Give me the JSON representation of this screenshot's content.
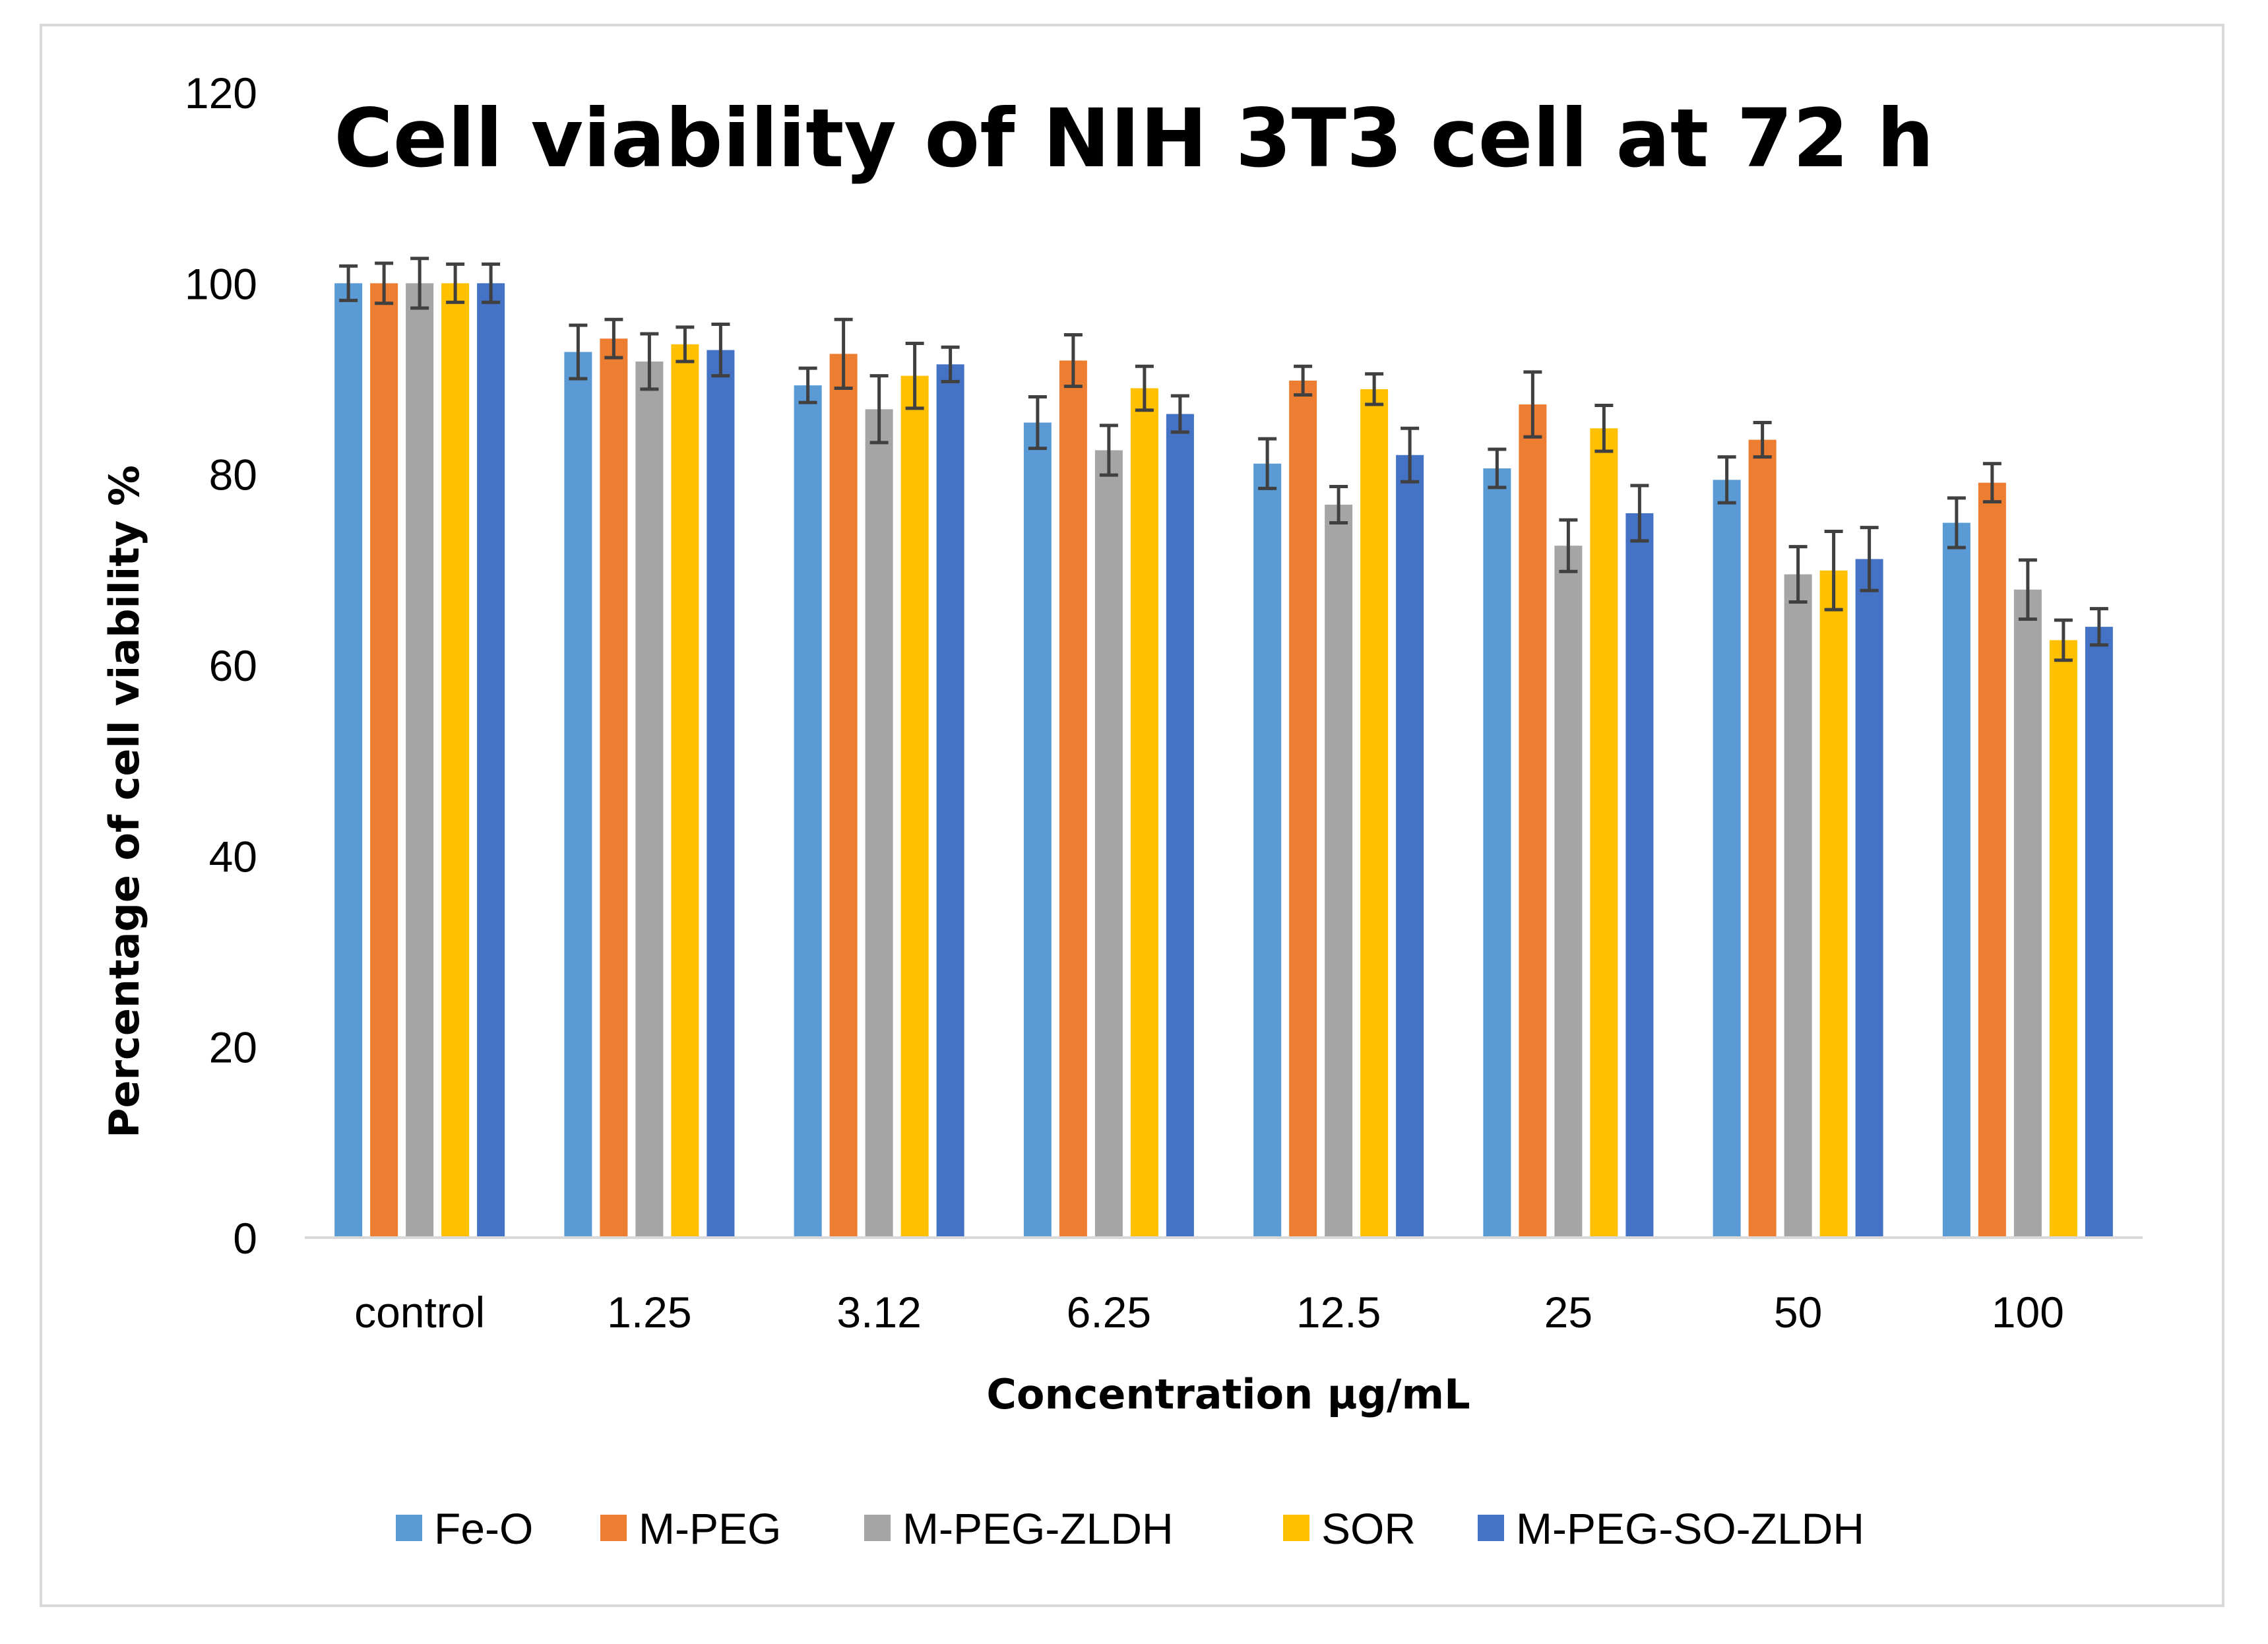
{
  "chart_data": {
    "type": "bar",
    "title": "Cell viability of NIH 3T3 cell at 72 h",
    "xlabel": "Concentration µg/mL",
    "ylabel": "Percentage of cell viability %",
    "ylim": [
      0,
      120
    ],
    "yticks": [
      0,
      20,
      40,
      60,
      80,
      100,
      120
    ],
    "categories": [
      "control",
      "1.25",
      "3.12",
      "6.25",
      "12.5",
      "25",
      "50",
      "100"
    ],
    "grid": false,
    "legend_position": "bottom",
    "series": [
      {
        "name": "Fe-O",
        "color": "#5B9BD5",
        "values": [
          100,
          92.8,
          89.3,
          85.4,
          81.1,
          80.6,
          79.4,
          74.9
        ],
        "errors": [
          1.8,
          2.8,
          1.8,
          2.7,
          2.6,
          2.0,
          2.4,
          2.6
        ]
      },
      {
        "name": "M-PEG",
        "color": "#ED7D31",
        "values": [
          100,
          94.2,
          92.6,
          91.9,
          89.8,
          87.3,
          83.6,
          79.1
        ],
        "errors": [
          2.1,
          2.0,
          3.6,
          2.7,
          1.5,
          3.4,
          1.8,
          2.0
        ]
      },
      {
        "name": "M-PEG-ZLDH",
        "color": "#A5A5A5",
        "values": [
          100,
          91.8,
          86.8,
          82.5,
          76.8,
          72.5,
          69.5,
          67.9
        ],
        "errors": [
          2.6,
          2.9,
          3.5,
          2.6,
          1.9,
          2.7,
          2.9,
          3.1
        ]
      },
      {
        "name": "SOR",
        "color": "#FFC000",
        "values": [
          100,
          93.6,
          90.3,
          89.0,
          88.9,
          84.8,
          69.9,
          62.6
        ],
        "errors": [
          2.0,
          1.8,
          3.4,
          2.3,
          1.6,
          2.4,
          4.1,
          2.1
        ]
      },
      {
        "name": "M-PEG-SO-ZLDH",
        "color": "#4472C4",
        "values": [
          100,
          93.0,
          91.5,
          86.3,
          82.0,
          75.9,
          71.1,
          64.0
        ],
        "errors": [
          2.0,
          2.7,
          1.8,
          1.9,
          2.8,
          2.9,
          3.3,
          1.9
        ]
      }
    ]
  }
}
